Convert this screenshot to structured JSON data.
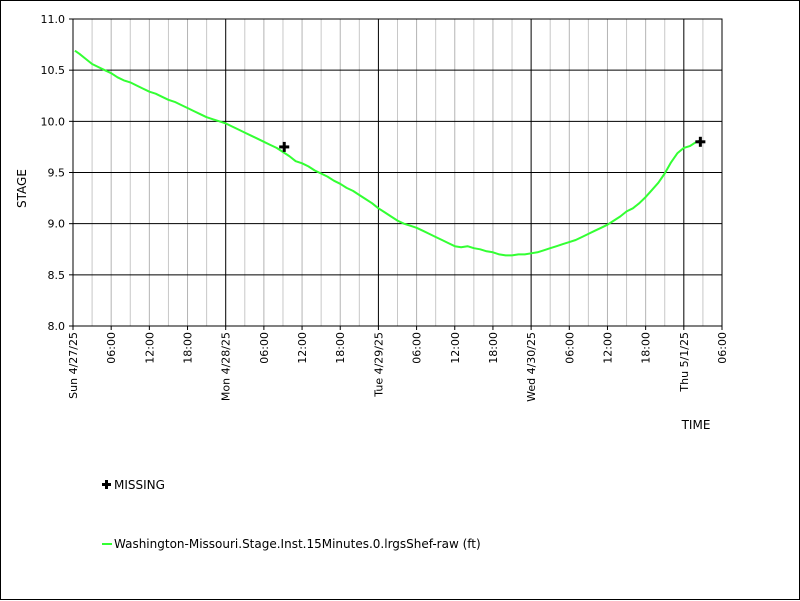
{
  "chart_data": {
    "type": "line",
    "xlabel": "TIME",
    "ylabel": "STAGE",
    "ylim": [
      8.0,
      11.0
    ],
    "yticks": [
      "8.0",
      "8.5",
      "9.0",
      "9.5",
      "10.0",
      "10.5",
      "11.0"
    ],
    "xlim_hours": [
      0,
      102
    ],
    "x_tick_labels": [
      {
        "h": 0,
        "label": "Sun 4/27/25",
        "major": true
      },
      {
        "h": 6,
        "label": "06:00",
        "major": false
      },
      {
        "h": 12,
        "label": "12:00",
        "major": false
      },
      {
        "h": 18,
        "label": "18:00",
        "major": false
      },
      {
        "h": 24,
        "label": "Mon 4/28/25",
        "major": true
      },
      {
        "h": 30,
        "label": "06:00",
        "major": false
      },
      {
        "h": 36,
        "label": "12:00",
        "major": false
      },
      {
        "h": 42,
        "label": "18:00",
        "major": false
      },
      {
        "h": 48,
        "label": "Tue 4/29/25",
        "major": true
      },
      {
        "h": 54,
        "label": "06:00",
        "major": false
      },
      {
        "h": 60,
        "label": "12:00",
        "major": false
      },
      {
        "h": 66,
        "label": "18:00",
        "major": false
      },
      {
        "h": 72,
        "label": "Wed 4/30/25",
        "major": true
      },
      {
        "h": 78,
        "label": "06:00",
        "major": false
      },
      {
        "h": 84,
        "label": "12:00",
        "major": false
      },
      {
        "h": 90,
        "label": "18:00",
        "major": false
      },
      {
        "h": 96,
        "label": "Thu 5/1/25",
        "major": true
      },
      {
        "h": 102,
        "label": "06:00",
        "major": false
      }
    ],
    "grid": true,
    "series": [
      {
        "name": "Washington-Missouri.Stage.Inst.15Minutes.0.lrgsShef-raw (ft)",
        "color": "#33ff33",
        "points": [
          [
            0.3,
            10.69
          ],
          [
            1,
            10.66
          ],
          [
            2,
            10.61
          ],
          [
            3,
            10.56
          ],
          [
            4,
            10.53
          ],
          [
            5,
            10.5
          ],
          [
            6,
            10.47
          ],
          [
            7,
            10.43
          ],
          [
            8,
            10.4
          ],
          [
            9,
            10.38
          ],
          [
            10,
            10.35
          ],
          [
            11,
            10.32
          ],
          [
            12,
            10.29
          ],
          [
            13,
            10.27
          ],
          [
            14,
            10.24
          ],
          [
            15,
            10.21
          ],
          [
            16,
            10.19
          ],
          [
            17,
            10.16
          ],
          [
            18,
            10.13
          ],
          [
            19,
            10.1
          ],
          [
            20,
            10.07
          ],
          [
            21,
            10.04
          ],
          [
            22,
            10.02
          ],
          [
            23,
            10.0
          ],
          [
            24,
            9.98
          ],
          [
            25,
            9.95
          ],
          [
            26,
            9.92
          ],
          [
            27,
            9.89
          ],
          [
            28,
            9.86
          ],
          [
            29,
            9.83
          ],
          [
            30,
            9.8
          ],
          [
            31,
            9.77
          ],
          [
            32,
            9.74
          ],
          [
            33,
            9.7
          ],
          [
            34,
            9.66
          ],
          [
            35,
            9.61
          ],
          [
            36,
            9.59
          ],
          [
            37,
            9.56
          ],
          [
            38,
            9.52
          ],
          [
            39,
            9.49
          ],
          [
            40,
            9.46
          ],
          [
            41,
            9.42
          ],
          [
            42,
            9.39
          ],
          [
            43,
            9.35
          ],
          [
            44,
            9.32
          ],
          [
            45,
            9.28
          ],
          [
            46,
            9.24
          ],
          [
            47,
            9.2
          ],
          [
            48,
            9.15
          ],
          [
            49,
            9.11
          ],
          [
            50,
            9.07
          ],
          [
            51,
            9.03
          ],
          [
            52,
            9.0
          ],
          [
            53,
            8.98
          ],
          [
            54,
            8.96
          ],
          [
            55,
            8.93
          ],
          [
            56,
            8.9
          ],
          [
            57,
            8.87
          ],
          [
            58,
            8.84
          ],
          [
            59,
            8.81
          ],
          [
            60,
            8.78
          ],
          [
            61,
            8.77
          ],
          [
            62,
            8.78
          ],
          [
            63,
            8.76
          ],
          [
            64,
            8.75
          ],
          [
            65,
            8.73
          ],
          [
            66,
            8.72
          ],
          [
            67,
            8.7
          ],
          [
            68,
            8.69
          ],
          [
            69,
            8.69
          ],
          [
            70,
            8.7
          ],
          [
            71,
            8.7
          ],
          [
            72,
            8.71
          ],
          [
            73,
            8.72
          ],
          [
            74,
            8.74
          ],
          [
            75,
            8.76
          ],
          [
            76,
            8.78
          ],
          [
            77,
            8.8
          ],
          [
            78,
            8.82
          ],
          [
            79,
            8.84
          ],
          [
            80,
            8.87
          ],
          [
            81,
            8.9
          ],
          [
            82,
            8.93
          ],
          [
            83,
            8.96
          ],
          [
            84,
            8.99
          ],
          [
            85,
            9.03
          ],
          [
            86,
            9.07
          ],
          [
            87,
            9.12
          ],
          [
            88,
            9.15
          ],
          [
            89,
            9.2
          ],
          [
            90,
            9.26
          ],
          [
            91,
            9.33
          ],
          [
            92,
            9.4
          ],
          [
            93,
            9.49
          ],
          [
            94,
            9.6
          ],
          [
            95,
            9.69
          ],
          [
            96,
            9.74
          ],
          [
            97,
            9.76
          ],
          [
            98,
            9.8
          ],
          [
            98.5,
            9.81
          ]
        ]
      }
    ],
    "missing_markers": [
      {
        "h": 33.2,
        "y": 9.75
      },
      {
        "h": 98.6,
        "y": 9.8
      }
    ],
    "legend": [
      {
        "symbol": "cross",
        "label": "MISSING"
      },
      {
        "symbol": "line",
        "label": "Washington-Missouri.Stage.Inst.15Minutes.0.lrgsShef-raw (ft)",
        "color": "#33ff33"
      }
    ]
  }
}
